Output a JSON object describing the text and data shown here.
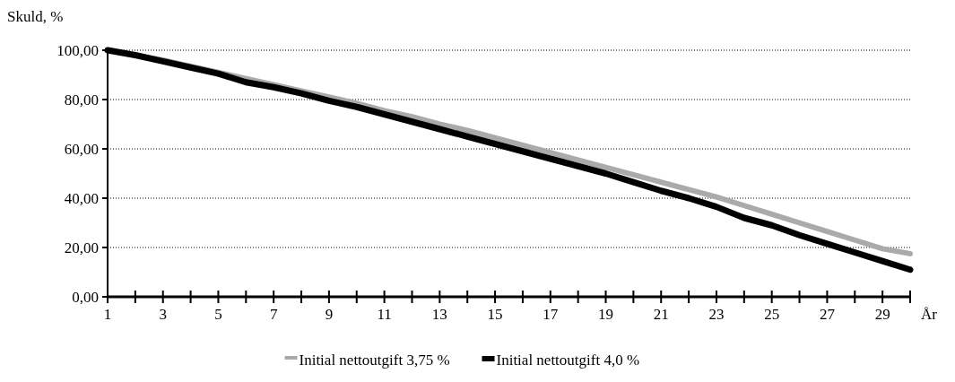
{
  "chart_data": {
    "type": "line",
    "xlabel": "År",
    "ylabel": "Skuld, %",
    "x": [
      1,
      2,
      3,
      4,
      5,
      6,
      7,
      8,
      9,
      10,
      11,
      12,
      13,
      14,
      15,
      16,
      17,
      18,
      19,
      20,
      21,
      22,
      23,
      24,
      25,
      26,
      27,
      28,
      29,
      30
    ],
    "series": [
      {
        "name": "Initial nettoutgift 3,75 %",
        "color": "#aaaaaa",
        "values": [
          100,
          98,
          96,
          93.5,
          91,
          88.5,
          86,
          83.5,
          81,
          78.5,
          75.5,
          73,
          70,
          67.5,
          64.5,
          61.5,
          58.5,
          55.5,
          52.5,
          49.5,
          46.5,
          43.5,
          40.5,
          37,
          33.5,
          30,
          26.5,
          23,
          19.5,
          17.5
        ]
      },
      {
        "name": "Initial nettoutgift 4,0 %",
        "color": "#000000",
        "values": [
          100,
          98,
          95.5,
          93,
          90.5,
          87,
          85,
          82.5,
          79.5,
          77,
          74,
          71,
          68,
          65,
          62,
          59,
          56,
          53,
          50,
          46.5,
          43,
          40,
          36.5,
          32,
          29,
          25,
          21.5,
          18,
          14.5,
          11
        ]
      }
    ],
    "xlim": [
      1,
      30
    ],
    "xticks": [
      1,
      {
        "value": 2,
        "label": null
      },
      3,
      {
        "value": 4,
        "label": null
      },
      5,
      {
        "value": 6,
        "label": null
      },
      7,
      {
        "value": 8,
        "label": null
      },
      9,
      {
        "value": 10,
        "label": null
      },
      11,
      {
        "value": 12,
        "label": null
      },
      13,
      {
        "value": 14,
        "label": null
      },
      15,
      {
        "value": 16,
        "label": null
      },
      17,
      {
        "value": 18,
        "label": null
      },
      19,
      {
        "value": 20,
        "label": null
      },
      21,
      {
        "value": 22,
        "label": null
      },
      23,
      {
        "value": 24,
        "label": null
      },
      25,
      {
        "value": 26,
        "label": null
      },
      27,
      {
        "value": 28,
        "label": null
      },
      29,
      {
        "value": 30,
        "label": null
      }
    ],
    "ylim": [
      0,
      100
    ],
    "yticks": [
      {
        "value": 0,
        "label": "0,00"
      },
      {
        "value": 20,
        "label": "20,00"
      },
      {
        "value": 40,
        "label": "40,00"
      },
      {
        "value": 60,
        "label": "60,00"
      },
      {
        "value": 80,
        "label": "80,00"
      },
      {
        "value": 100,
        "label": "100,00"
      }
    ],
    "grid": "y",
    "legend": "bottom",
    "marker": "none",
    "line_style": "solid"
  }
}
